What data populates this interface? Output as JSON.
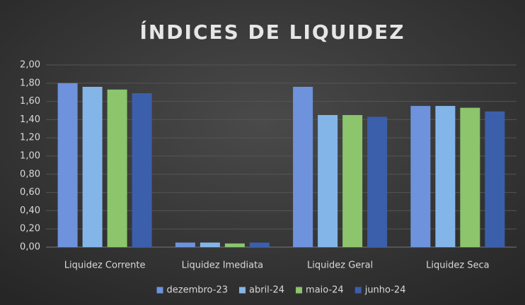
{
  "chart_data": {
    "type": "bar",
    "title": "ÍNDICES DE LIQUIDEZ",
    "categories": [
      "Liquidez Corrente",
      "Liquidez Imediata",
      "Liquidez Geral",
      "Liquidez Seca"
    ],
    "series": [
      {
        "name": "dezembro-23",
        "color": "#6e93dc",
        "values": [
          1.8,
          0.05,
          1.76,
          1.55
        ]
      },
      {
        "name": "abril-24",
        "color": "#84b5e8",
        "values": [
          1.76,
          0.05,
          1.45,
          1.55
        ]
      },
      {
        "name": "maio-24",
        "color": "#8cc56c",
        "values": [
          1.73,
          0.04,
          1.45,
          1.53
        ]
      },
      {
        "name": "junho-24",
        "color": "#3b5fab",
        "values": [
          1.69,
          0.05,
          1.43,
          1.49
        ]
      }
    ],
    "ylim": [
      0,
      2
    ],
    "yticks": [
      {
        "value": 0,
        "label": "0,00"
      },
      {
        "value": 0.2,
        "label": "0,20"
      },
      {
        "value": 0.4,
        "label": "0,40"
      },
      {
        "value": 0.6,
        "label": "0,60"
      },
      {
        "value": 0.8,
        "label": "0,80"
      },
      {
        "value": 1,
        "label": "1,00"
      },
      {
        "value": 1.2,
        "label": "1,20"
      },
      {
        "value": 1.4,
        "label": "1,40"
      },
      {
        "value": 1.6,
        "label": "1,60"
      },
      {
        "value": 1.8,
        "label": "1,80"
      },
      {
        "value": 2,
        "label": "2,00"
      }
    ],
    "grid": true,
    "legend": "bottom"
  }
}
